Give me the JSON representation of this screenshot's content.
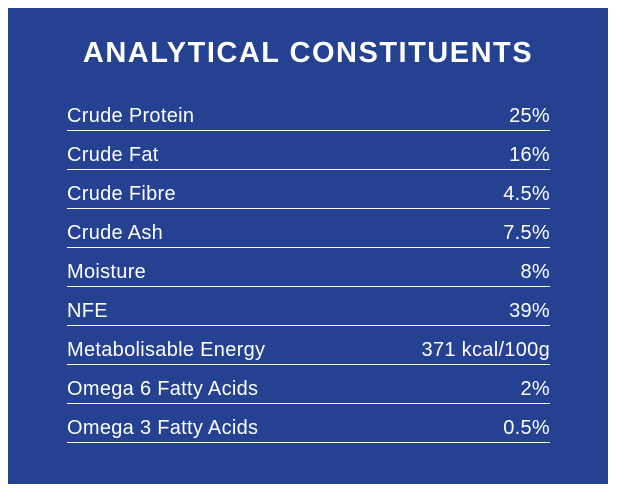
{
  "panel": {
    "title": "ANALYTICAL CONSTITUENTS",
    "background_color": "#254292",
    "text_color": "#ffffff",
    "divider_color": "#ffffff"
  },
  "table": {
    "rows": [
      {
        "label": "Crude Protein",
        "value": "25%"
      },
      {
        "label": "Crude Fat",
        "value": "16%"
      },
      {
        "label": "Crude Fibre",
        "value": "4.5%"
      },
      {
        "label": "Crude Ash",
        "value": "7.5%"
      },
      {
        "label": "Moisture",
        "value": "8%"
      },
      {
        "label": "NFE",
        "value": "39%"
      },
      {
        "label": "Metabolisable Energy",
        "value": "371 kcal/100g"
      },
      {
        "label": "Omega 6 Fatty Acids",
        "value": "2%"
      },
      {
        "label": "Omega 3 Fatty Acids",
        "value": "0.5%"
      }
    ]
  }
}
